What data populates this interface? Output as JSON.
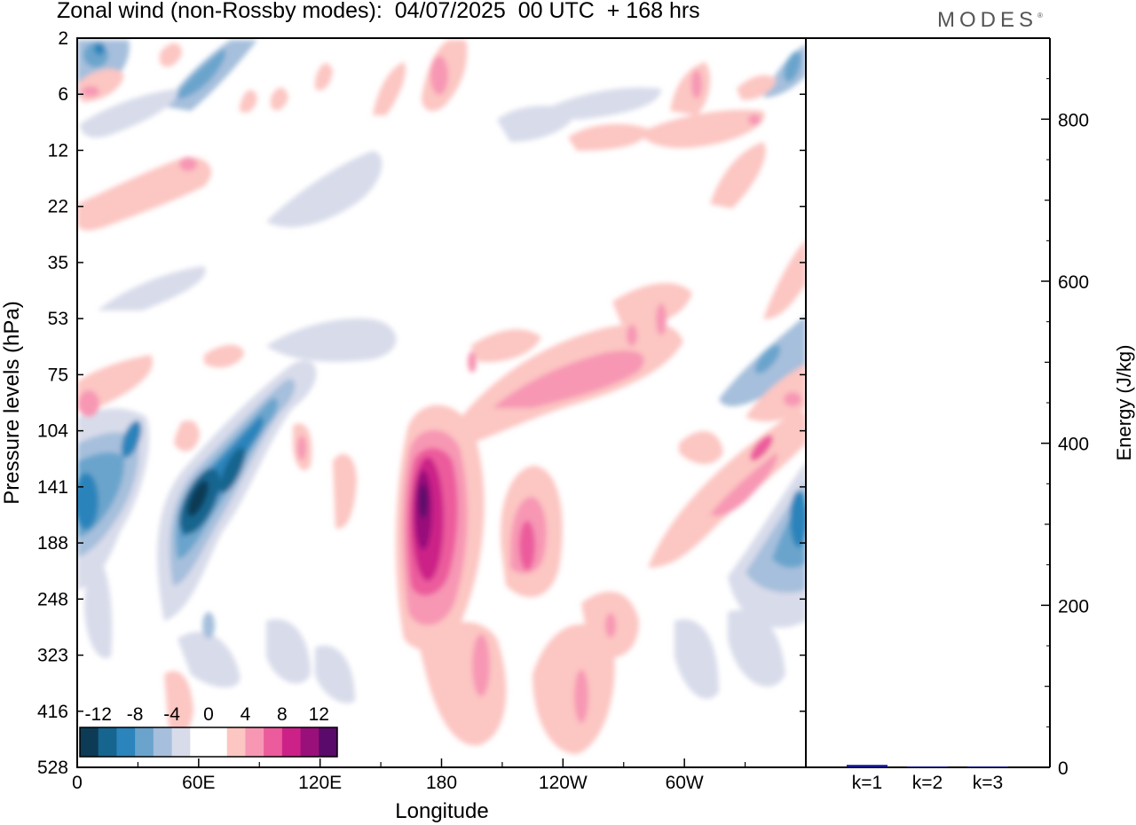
{
  "title": "Zonal wind (non-Rossby modes):  04/07/2025  00 UTC  + 168 hrs",
  "brand": "MODES",
  "brand_mark": "®",
  "chart_data": [
    {
      "type": "heatmap",
      "title": "Zonal wind (non-Rossby modes):  04/07/2025  00 UTC  + 168 hrs",
      "xlabel": "Longitude",
      "ylabel": "Pressure levels (hPa)",
      "x_ticks": [
        "0",
        "60E",
        "120E",
        "180",
        "120W",
        "60W"
      ],
      "y_ticks": [
        "2",
        "6",
        "12",
        "22",
        "35",
        "53",
        "75",
        "104",
        "141",
        "188",
        "248",
        "323",
        "416",
        "528"
      ],
      "colorbar": {
        "labels": [
          "-12",
          "-8",
          "-4",
          "0",
          "4",
          "8",
          "12"
        ],
        "colors": [
          "#0d3b55",
          "#16658f",
          "#2b84bb",
          "#6aa4cc",
          "#a6bfdc",
          "#d8dbea",
          "#ffffff",
          "#ffffff",
          "#fcc6c2",
          "#f797b4",
          "#ec5b9c",
          "#cc2288",
          "#99107a",
          "#5a0a6a"
        ]
      },
      "features": [
        {
          "lon": 60,
          "level": 141,
          "value": -14
        },
        {
          "lon": 75,
          "level": 120,
          "value": -10
        },
        {
          "lon": 25,
          "level": 110,
          "value": -8
        },
        {
          "lon": 0,
          "level": 160,
          "value": -9
        },
        {
          "lon": 355,
          "level": 170,
          "value": -9
        },
        {
          "lon": 345,
          "level": 70,
          "value": -7
        },
        {
          "lon": 10,
          "level": 2.5,
          "value": -7
        },
        {
          "lon": 168,
          "level": 160,
          "value": 13
        },
        {
          "lon": 165,
          "level": 250,
          "value": 7
        },
        {
          "lon": 220,
          "level": 190,
          "value": 7
        },
        {
          "lon": 240,
          "level": 75,
          "value": 6
        },
        {
          "lon": 290,
          "level": 150,
          "value": 7
        },
        {
          "lon": 340,
          "level": 115,
          "value": 7
        },
        {
          "lon": 180,
          "level": 5,
          "value": 6
        },
        {
          "lon": 300,
          "level": 5,
          "value": 6
        }
      ]
    },
    {
      "type": "bar",
      "categories": [
        "k=1",
        "k=2",
        "k=3"
      ],
      "values": [
        3,
        1,
        1
      ],
      "ylabel": "Energy (J/kg)",
      "y_ticks": [
        "0",
        "200",
        "400",
        "600",
        "800"
      ],
      "ylim": [
        0,
        900
      ],
      "bar_color": "#14148a"
    }
  ]
}
